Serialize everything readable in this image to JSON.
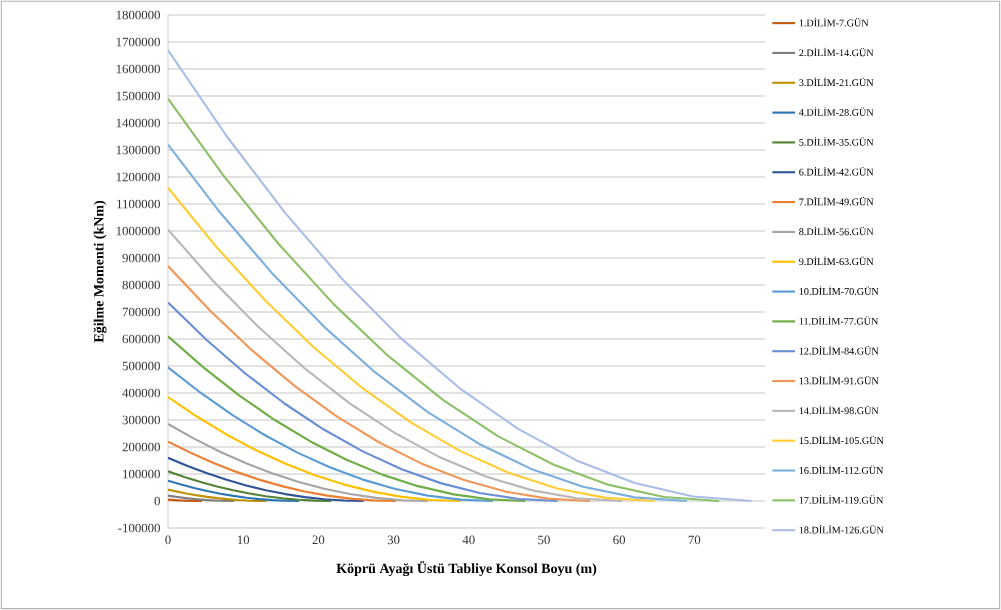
{
  "chart_data": {
    "type": "line",
    "xlabel": "Köprü Ayağı Üstü Tabliye Konsol Boyu (m)",
    "ylabel": "Eğilme Momenti (kNm)",
    "xlim": [
      0,
      79.4
    ],
    "xticks": [
      0,
      10,
      20,
      30,
      40,
      50,
      60,
      70
    ],
    "ylim": [
      -100000,
      1800000
    ],
    "yticks": [
      -100000,
      0,
      100000,
      200000,
      300000,
      400000,
      500000,
      600000,
      700000,
      800000,
      900000,
      1000000,
      1100000,
      1200000,
      1300000,
      1400000,
      1500000,
      1600000,
      1700000,
      1800000
    ],
    "grid": "y",
    "legend": "right",
    "marker": "none",
    "line_style": "solid",
    "series": [
      {
        "name": "1.DİLİM-7.GÜN",
        "color": "#c55a11",
        "x": [
          0,
          0.45,
          0.9,
          1.35,
          1.8,
          2.25,
          2.7,
          3.15,
          3.6,
          4.05,
          4.5
        ],
        "values": [
          5000,
          4050,
          3200,
          2450,
          1800,
          1250,
          800,
          450,
          200,
          50,
          0
        ]
      },
      {
        "name": "2.DİLİM-14.GÜN",
        "color": "#7f7f7f",
        "x": [
          0,
          0.88,
          1.76,
          2.64,
          3.52,
          4.4,
          5.28,
          6.16,
          7.04,
          7.92,
          8.8
        ],
        "values": [
          20000,
          16200,
          12800,
          9800,
          7200,
          5000,
          3200,
          1800,
          800,
          200,
          0
        ]
      },
      {
        "name": "3.DİLİM-21.GÜN",
        "color": "#bf9000",
        "x": [
          0,
          1.31,
          2.62,
          3.93,
          5.24,
          6.55,
          7.86,
          9.17,
          10.48,
          11.79,
          13.1
        ],
        "values": [
          42000,
          34020,
          26880,
          20580,
          15120,
          10500,
          6720,
          3780,
          1680,
          420,
          0
        ]
      },
      {
        "name": "4.DİLİM-28.GÜN",
        "color": "#2e75b6",
        "x": [
          0,
          1.74,
          3.48,
          5.22,
          6.96,
          8.7,
          10.44,
          12.18,
          13.92,
          15.66,
          17.4
        ],
        "values": [
          75000,
          60750,
          48000,
          36750,
          27000,
          18750,
          12000,
          6750,
          3000,
          750,
          0
        ]
      },
      {
        "name": "5.DİLİM-35.GÜN",
        "color": "#548235",
        "x": [
          0,
          2.17,
          4.34,
          6.51,
          8.68,
          10.85,
          13.02,
          15.19,
          17.36,
          19.53,
          21.7
        ],
        "values": [
          110000,
          89100,
          70400,
          53900,
          39600,
          27500,
          17600,
          9900,
          4400,
          1100,
          0
        ]
      },
      {
        "name": "6.DİLİM-42.GÜN",
        "color": "#2f5597",
        "x": [
          0,
          2.6,
          5.2,
          7.8,
          10.4,
          13,
          15.6,
          18.2,
          20.8,
          23.4,
          26
        ],
        "values": [
          160000,
          129600,
          102400,
          78400,
          57600,
          40000,
          25600,
          14400,
          6400,
          1600,
          0
        ]
      },
      {
        "name": "7.DİLİM-49.GÜN",
        "color": "#ed7d31",
        "x": [
          0,
          3.03,
          6.06,
          9.09,
          12.12,
          15.15,
          18.18,
          21.21,
          24.24,
          27.27,
          30.3
        ],
        "values": [
          220000,
          178200,
          140800,
          107800,
          79200,
          55000,
          35200,
          19800,
          8800,
          2200,
          0
        ]
      },
      {
        "name": "8.DİLİM-56.GÜN",
        "color": "#a5a5a5",
        "x": [
          0,
          3.46,
          6.92,
          10.38,
          13.84,
          17.3,
          20.76,
          24.22,
          27.68,
          31.14,
          34.6
        ],
        "values": [
          285000,
          230850,
          182400,
          139650,
          102600,
          71250,
          45600,
          25650,
          11400,
          2850,
          0
        ]
      },
      {
        "name": "9.DİLİM-63.GÜN",
        "color": "#ffc000",
        "x": [
          0,
          3.89,
          7.78,
          11.67,
          15.56,
          19.45,
          23.34,
          27.23,
          31.12,
          35.01,
          38.9
        ],
        "values": [
          385000,
          311850,
          246400,
          188650,
          138600,
          96250,
          61600,
          34650,
          15400,
          3850,
          0
        ]
      },
      {
        "name": "10.DİLİM-70.GÜN",
        "color": "#5b9bd5",
        "x": [
          0,
          4.32,
          8.64,
          12.96,
          17.28,
          21.6,
          25.92,
          30.24,
          34.56,
          38.88,
          43.2
        ],
        "values": [
          495000,
          400950,
          316800,
          242550,
          178200,
          123750,
          79200,
          44550,
          19800,
          4950,
          0
        ]
      },
      {
        "name": "11.DİLİM-77.GÜN",
        "color": "#70ad47",
        "x": [
          0,
          4.75,
          9.5,
          14.25,
          19,
          23.75,
          28.5,
          33.25,
          38,
          42.75,
          47.5
        ],
        "values": [
          610000,
          494100,
          390400,
          298900,
          219600,
          152500,
          97600,
          54900,
          24400,
          6100,
          0
        ]
      },
      {
        "name": "12.DİLİM-84.GÜN",
        "color": "#6a8ed6",
        "x": [
          0,
          5.18,
          10.36,
          15.54,
          20.72,
          25.9,
          31.08,
          36.26,
          41.44,
          46.62,
          51.8
        ],
        "values": [
          735000,
          595350,
          470400,
          360150,
          264600,
          183750,
          117600,
          66150,
          29400,
          7350,
          0
        ]
      },
      {
        "name": "13.DİLİM-91.GÜN",
        "color": "#f1975a",
        "x": [
          0,
          5.61,
          11.22,
          16.83,
          22.44,
          28.05,
          33.66,
          39.27,
          44.88,
          50.49,
          56.1
        ],
        "values": [
          870000,
          704700,
          556800,
          426300,
          313200,
          217500,
          139200,
          78300,
          34800,
          8700,
          0
        ]
      },
      {
        "name": "14.DİLİM-98.GÜN",
        "color": "#b7b7b7",
        "x": [
          0,
          6.04,
          12.08,
          18.12,
          24.16,
          30.2,
          36.24,
          42.28,
          48.32,
          54.36,
          60.4
        ],
        "values": [
          1005000,
          814050,
          643200,
          492450,
          361800,
          251250,
          160800,
          90450,
          40200,
          10050,
          0
        ]
      },
      {
        "name": "15.DİLİM-105.GÜN",
        "color": "#ffcd33",
        "x": [
          0,
          6.47,
          12.94,
          19.41,
          25.88,
          32.35,
          38.82,
          45.29,
          51.76,
          58.23,
          64.7
        ],
        "values": [
          1160000,
          939600,
          742400,
          568400,
          417600,
          290000,
          185600,
          104400,
          46400,
          11600,
          0
        ]
      },
      {
        "name": "16.DİLİM-112.GÜN",
        "color": "#7cafdd",
        "x": [
          0,
          6.9,
          13.8,
          20.7,
          27.6,
          34.5,
          41.4,
          48.3,
          55.2,
          62.1,
          69
        ],
        "values": [
          1320000,
          1069200,
          844800,
          646800,
          475200,
          330000,
          211200,
          118800,
          52800,
          13200,
          0
        ]
      },
      {
        "name": "17.DİLİM-119.GÜN",
        "color": "#8cc168",
        "x": [
          0,
          7.33,
          14.66,
          21.99,
          29.32,
          36.65,
          43.98,
          51.31,
          58.64,
          65.97,
          73.3
        ],
        "values": [
          1490000,
          1206900,
          953600,
          730100,
          536400,
          372500,
          238400,
          134100,
          59600,
          14900,
          0
        ]
      },
      {
        "name": "18.DİLİM-126.GÜN",
        "color": "#a9bde6",
        "x": [
          0,
          7.76,
          15.52,
          23.28,
          31.04,
          38.8,
          46.56,
          54.32,
          62.08,
          69.84,
          77.6
        ],
        "values": [
          1670000,
          1352700,
          1068800,
          818300,
          601200,
          417500,
          267200,
          150300,
          66800,
          16700,
          0
        ]
      }
    ]
  }
}
